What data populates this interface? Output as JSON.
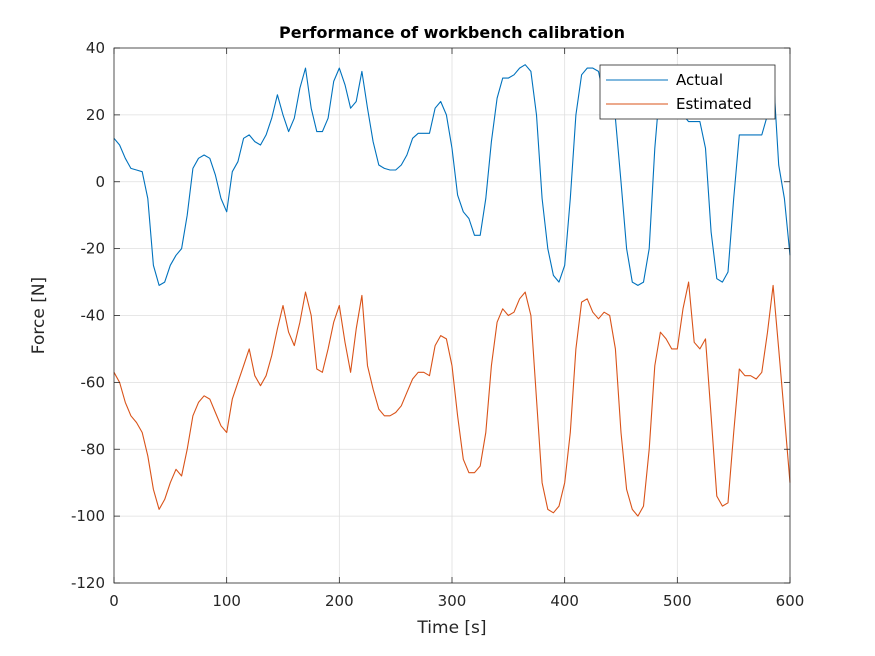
{
  "chart_data": {
    "type": "line",
    "title": "Performance of workbench calibration",
    "xlabel": "Time [s]",
    "ylabel": "Force [N]",
    "xlim": [
      0,
      600
    ],
    "ylim": [
      -120,
      40
    ],
    "xticks": [
      0,
      100,
      200,
      300,
      400,
      500,
      600
    ],
    "yticks": [
      -120,
      -100,
      -80,
      -60,
      -40,
      -20,
      0,
      20,
      40
    ],
    "grid": true,
    "legend_position": "top-right",
    "series": [
      {
        "name": "Actual",
        "color": "#0072BD",
        "x": [
          0,
          5,
          10,
          15,
          20,
          25,
          30,
          35,
          40,
          45,
          50,
          55,
          60,
          65,
          70,
          75,
          80,
          85,
          90,
          95,
          100,
          105,
          110,
          115,
          120,
          125,
          130,
          135,
          140,
          145,
          150,
          155,
          160,
          165,
          170,
          175,
          180,
          185,
          190,
          195,
          200,
          205,
          210,
          215,
          220,
          225,
          230,
          235,
          240,
          245,
          250,
          255,
          260,
          265,
          270,
          275,
          280,
          285,
          290,
          295,
          300,
          305,
          310,
          315,
          320,
          325,
          330,
          335,
          340,
          345,
          350,
          355,
          360,
          365,
          370,
          375,
          380,
          385,
          390,
          395,
          400,
          405,
          410,
          415,
          420,
          425,
          430,
          435,
          440,
          445,
          450,
          455,
          460,
          465,
          470,
          475,
          480,
          485,
          490,
          495,
          500,
          505,
          510,
          515,
          520,
          525,
          530,
          535,
          540,
          545,
          550,
          555,
          560,
          565,
          570,
          575,
          580,
          585,
          590,
          595,
          600
        ],
        "values": [
          13,
          11,
          7,
          4,
          3.5,
          3,
          -5,
          -25,
          -31,
          -30,
          -25,
          -22,
          -20,
          -10,
          4,
          7,
          8,
          7,
          2,
          -5,
          -9,
          3,
          6,
          13,
          14,
          12,
          11,
          14,
          19,
          26,
          20,
          15,
          19,
          28,
          34,
          22,
          15,
          15,
          19,
          30,
          34,
          29,
          22,
          24,
          33,
          22,
          12,
          5,
          4,
          3.5,
          3.5,
          5,
          8,
          13,
          14.5,
          14.5,
          14.5,
          22,
          24,
          20,
          10,
          -4,
          -9,
          -11,
          -16,
          -16,
          -5,
          12,
          25,
          31,
          31,
          32,
          34,
          35,
          33,
          20,
          -5,
          -20,
          -28,
          -30,
          -25,
          -5,
          20,
          32,
          34,
          34,
          33,
          25,
          20,
          19,
          0,
          -20,
          -30,
          -31,
          -30,
          -20,
          10,
          30,
          30,
          28,
          26,
          20,
          18,
          18,
          18,
          10,
          -15,
          -29,
          -30,
          -27,
          -5,
          14,
          14,
          14,
          14,
          14,
          20,
          33,
          5,
          -5,
          -22
        ]
      },
      {
        "name": "Estimated",
        "color": "#D95319",
        "x": [
          0,
          5,
          10,
          15,
          20,
          25,
          30,
          35,
          40,
          45,
          50,
          55,
          60,
          65,
          70,
          75,
          80,
          85,
          90,
          95,
          100,
          105,
          110,
          115,
          120,
          125,
          130,
          135,
          140,
          145,
          150,
          155,
          160,
          165,
          170,
          175,
          180,
          185,
          190,
          195,
          200,
          205,
          210,
          215,
          220,
          225,
          230,
          235,
          240,
          245,
          250,
          255,
          260,
          265,
          270,
          275,
          280,
          285,
          290,
          295,
          300,
          305,
          310,
          315,
          320,
          325,
          330,
          335,
          340,
          345,
          350,
          355,
          360,
          365,
          370,
          375,
          380,
          385,
          390,
          395,
          400,
          405,
          410,
          415,
          420,
          425,
          430,
          435,
          440,
          445,
          450,
          455,
          460,
          465,
          470,
          475,
          480,
          485,
          490,
          495,
          500,
          505,
          510,
          515,
          520,
          525,
          530,
          535,
          540,
          545,
          550,
          555,
          560,
          565,
          570,
          575,
          580,
          585,
          590,
          595,
          600
        ],
        "values": [
          -57,
          -60,
          -66,
          -70,
          -72,
          -75,
          -82,
          -92,
          -98,
          -95,
          -90,
          -86,
          -88,
          -80,
          -70,
          -66,
          -64,
          -65,
          -69,
          -73,
          -75,
          -65,
          -60,
          -55,
          -50,
          -58,
          -61,
          -58,
          -52,
          -44,
          -37,
          -45,
          -49,
          -42,
          -33,
          -40,
          -56,
          -57,
          -50,
          -42,
          -37,
          -48,
          -57,
          -44,
          -34,
          -55,
          -62,
          -68,
          -70,
          -70,
          -69,
          -67,
          -63,
          -59,
          -57,
          -57,
          -58,
          -49,
          -46,
          -47,
          -55,
          -70,
          -83,
          -87,
          -87,
          -85,
          -75,
          -55,
          -42,
          -38,
          -40,
          -39,
          -35,
          -33,
          -40,
          -65,
          -90,
          -98,
          -99,
          -97,
          -90,
          -75,
          -50,
          -36,
          -35,
          -39,
          -41,
          -39,
          -40,
          -50,
          -75,
          -92,
          -98,
          -100,
          -97,
          -80,
          -55,
          -45,
          -47,
          -50,
          -50,
          -38,
          -30,
          -48,
          -50,
          -47,
          -70,
          -94,
          -97,
          -96,
          -75,
          -56,
          -58,
          -58,
          -59,
          -57,
          -45,
          -31,
          -50,
          -70,
          -90
        ]
      }
    ]
  }
}
